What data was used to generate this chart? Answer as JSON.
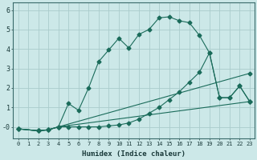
{
  "xlabel": "Humidex (Indice chaleur)",
  "bg_color": "#cce8e8",
  "grid_color": "#aacccc",
  "line_color": "#1a6b5a",
  "xlim": [
    -0.5,
    23.5
  ],
  "ylim": [
    -0.6,
    6.4
  ],
  "yticks": [
    0,
    1,
    2,
    3,
    4,
    5,
    6
  ],
  "ytick_labels": [
    "-0",
    "1",
    "2",
    "3",
    "4",
    "5",
    "6"
  ],
  "xticks": [
    0,
    1,
    2,
    3,
    4,
    5,
    6,
    7,
    8,
    9,
    10,
    11,
    12,
    13,
    14,
    15,
    16,
    17,
    18,
    19,
    20,
    21,
    22,
    23
  ],
  "lines": [
    {
      "x": [
        0,
        2,
        3,
        4,
        5,
        6,
        7,
        8,
        9,
        10,
        11,
        12,
        13,
        14,
        15,
        16,
        17,
        18,
        19,
        20,
        21,
        22,
        23
      ],
      "y": [
        -0.1,
        -0.2,
        -0.15,
        0.0,
        1.2,
        0.85,
        2.0,
        3.35,
        3.95,
        4.55,
        4.05,
        4.75,
        5.0,
        5.6,
        5.65,
        5.45,
        5.35,
        4.7,
        3.8,
        1.5,
        1.5,
        2.1,
        1.3
      ],
      "marker": "D",
      "markersize": 2.5
    },
    {
      "x": [
        0,
        2,
        3,
        4,
        5,
        6,
        7,
        8,
        9,
        10,
        11,
        12,
        13,
        14,
        15,
        16,
        17,
        18,
        19,
        20,
        21,
        22,
        23
      ],
      "y": [
        -0.1,
        -0.2,
        -0.15,
        0.0,
        0.0,
        0.0,
        0.0,
        0.0,
        0.05,
        0.1,
        0.2,
        0.4,
        0.7,
        1.0,
        1.4,
        1.8,
        2.3,
        2.8,
        3.8,
        1.5,
        1.5,
        2.1,
        1.3
      ],
      "marker": "D",
      "markersize": 2.5
    },
    {
      "x": [
        0,
        2,
        3,
        4,
        23
      ],
      "y": [
        -0.1,
        -0.2,
        -0.15,
        0.0,
        2.75
      ],
      "marker": "D",
      "markersize": 2.5
    },
    {
      "x": [
        0,
        2,
        3,
        4,
        23
      ],
      "y": [
        -0.1,
        -0.2,
        -0.15,
        0.0,
        1.3
      ],
      "marker": "D",
      "markersize": 2.5
    }
  ]
}
